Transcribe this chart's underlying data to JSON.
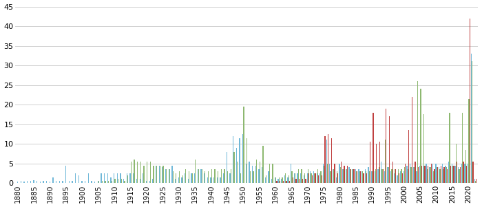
{
  "years": [
    1880,
    1881,
    1882,
    1883,
    1884,
    1885,
    1886,
    1887,
    1888,
    1889,
    1890,
    1891,
    1892,
    1893,
    1894,
    1895,
    1896,
    1897,
    1898,
    1899,
    1900,
    1901,
    1902,
    1903,
    1904,
    1905,
    1906,
    1907,
    1908,
    1909,
    1910,
    1911,
    1912,
    1913,
    1914,
    1915,
    1916,
    1917,
    1918,
    1919,
    1920,
    1921,
    1922,
    1923,
    1924,
    1925,
    1926,
    1927,
    1928,
    1929,
    1930,
    1931,
    1932,
    1933,
    1934,
    1935,
    1936,
    1937,
    1938,
    1939,
    1940,
    1941,
    1942,
    1943,
    1944,
    1945,
    1946,
    1947,
    1948,
    1949,
    1950,
    1951,
    1952,
    1953,
    1954,
    1955,
    1956,
    1957,
    1958,
    1959,
    1960,
    1961,
    1962,
    1963,
    1964,
    1965,
    1966,
    1967,
    1968,
    1969,
    1970,
    1971,
    1972,
    1973,
    1974,
    1975,
    1976,
    1977,
    1978,
    1979,
    1980,
    1981,
    1982,
    1983,
    1984,
    1985,
    1986,
    1987,
    1988,
    1989,
    1990,
    1991,
    1992,
    1993,
    1994,
    1995,
    1996,
    1997,
    1998,
    1999,
    2000,
    2001,
    2002,
    2003,
    2004,
    2005,
    2006,
    2007,
    2008,
    2009,
    2010,
    2011,
    2012,
    2013,
    2014,
    2015,
    2016,
    2017,
    2018,
    2019,
    2020,
    2021,
    2022
  ],
  "blue": [
    0.3,
    0.5,
    0.3,
    0.5,
    0.5,
    0.8,
    0.5,
    0.3,
    0.5,
    0.5,
    0.3,
    1.5,
    0.5,
    0.5,
    0.5,
    4.5,
    0.5,
    0.5,
    2.5,
    2.0,
    0.5,
    0.5,
    2.5,
    0.5,
    0.3,
    0.5,
    2.5,
    2.5,
    2.5,
    1.5,
    2.5,
    2.5,
    2.5,
    1.0,
    2.5,
    2.5,
    2.5,
    1.0,
    1.0,
    2.5,
    0.5,
    0.5,
    1.0,
    4.5,
    4.5,
    4.0,
    3.5,
    3.5,
    4.5,
    1.0,
    1.5,
    1.5,
    2.5,
    1.0,
    2.5,
    2.5,
    3.5,
    3.5,
    2.5,
    1.5,
    1.5,
    1.5,
    1.5,
    1.5,
    2.5,
    8.0,
    2.5,
    12.0,
    9.0,
    11.5,
    12.5,
    5.0,
    5.5,
    4.5,
    4.5,
    3.5,
    4.0,
    1.5,
    3.0,
    1.0,
    1.5,
    1.0,
    1.0,
    2.0,
    1.5,
    5.0,
    2.5,
    2.5,
    2.5,
    2.0,
    2.5,
    3.0,
    3.0,
    2.5,
    2.5,
    5.0,
    11.0,
    5.0,
    3.5,
    1.5,
    5.0,
    3.5,
    3.5,
    4.0,
    3.5,
    3.5,
    3.5,
    3.0,
    3.5,
    4.0,
    3.0,
    3.0,
    3.5,
    5.5,
    3.0,
    4.0,
    3.0,
    2.5,
    2.0,
    3.0,
    3.0,
    4.5,
    5.0,
    4.0,
    3.0,
    4.5,
    4.5,
    5.0,
    4.0,
    5.0,
    5.0,
    4.0,
    5.0,
    4.5,
    5.5,
    5.0,
    4.5,
    4.0,
    5.0,
    5.0,
    5.0,
    33.0,
    1.0
  ],
  "green": [
    0.0,
    0.0,
    0.0,
    0.0,
    0.0,
    0.0,
    0.0,
    0.0,
    0.0,
    0.0,
    0.0,
    0.0,
    0.0,
    0.0,
    0.0,
    0.0,
    0.0,
    0.0,
    0.0,
    0.0,
    0.0,
    0.0,
    0.0,
    0.0,
    0.0,
    0.5,
    0.5,
    0.5,
    0.5,
    0.5,
    1.0,
    1.0,
    1.0,
    0.5,
    2.0,
    5.5,
    6.0,
    5.5,
    5.5,
    4.5,
    5.5,
    5.5,
    4.5,
    4.5,
    4.5,
    4.5,
    3.5,
    3.5,
    3.0,
    2.5,
    3.0,
    2.0,
    3.5,
    3.0,
    2.5,
    6.0,
    3.5,
    3.5,
    3.0,
    3.0,
    3.5,
    3.5,
    3.0,
    3.5,
    3.5,
    3.0,
    3.5,
    8.0,
    5.5,
    2.5,
    19.5,
    11.5,
    3.0,
    3.0,
    6.0,
    5.5,
    9.5,
    2.0,
    5.0,
    5.0,
    1.5,
    1.5,
    1.5,
    2.5,
    2.0,
    3.0,
    2.5,
    3.5,
    3.5,
    2.5,
    3.5,
    2.5,
    2.5,
    3.5,
    3.0,
    4.5,
    5.0,
    3.0,
    3.5,
    3.0,
    4.0,
    3.5,
    3.5,
    3.5,
    3.5,
    3.0,
    3.0,
    3.0,
    3.0,
    3.0,
    3.0,
    3.5,
    4.0,
    3.5,
    11.0,
    4.0,
    3.5,
    3.5,
    3.5,
    3.5,
    4.0,
    3.5,
    4.0,
    4.0,
    26.0,
    24.0,
    17.5,
    3.5,
    4.0,
    3.0,
    4.0,
    3.5,
    3.5,
    4.0,
    18.0,
    4.5,
    10.0,
    3.5,
    18.0,
    8.5,
    21.5,
    31.0,
    0.5
  ],
  "red": [
    0.0,
    0.0,
    0.0,
    0.0,
    0.0,
    0.0,
    0.0,
    0.0,
    0.0,
    0.0,
    0.0,
    0.0,
    0.0,
    0.0,
    0.0,
    0.0,
    0.0,
    0.0,
    0.0,
    0.0,
    0.0,
    0.0,
    0.0,
    0.0,
    0.0,
    0.0,
    0.0,
    0.0,
    0.0,
    0.0,
    0.0,
    0.0,
    0.0,
    0.0,
    0.0,
    0.0,
    0.0,
    0.0,
    0.0,
    0.0,
    0.0,
    0.0,
    0.0,
    0.0,
    0.0,
    0.0,
    0.0,
    0.0,
    0.0,
    0.0,
    0.0,
    0.0,
    0.0,
    0.0,
    0.0,
    0.0,
    0.0,
    0.0,
    0.0,
    0.0,
    0.0,
    0.0,
    0.0,
    0.0,
    0.0,
    0.0,
    0.0,
    0.0,
    0.0,
    0.0,
    0.0,
    0.0,
    0.0,
    0.0,
    0.0,
    0.0,
    0.0,
    0.0,
    0.0,
    0.0,
    0.5,
    0.5,
    0.5,
    0.5,
    0.5,
    1.5,
    1.0,
    1.0,
    1.0,
    1.0,
    2.5,
    2.0,
    2.5,
    2.0,
    2.0,
    12.0,
    12.5,
    11.5,
    5.0,
    2.5,
    5.5,
    4.5,
    4.5,
    3.5,
    3.5,
    3.0,
    3.0,
    2.5,
    2.5,
    10.5,
    18.0,
    10.0,
    10.5,
    3.5,
    19.0,
    17.0,
    5.5,
    3.5,
    2.5,
    2.5,
    5.0,
    13.5,
    22.0,
    5.5,
    4.0,
    4.5,
    4.5,
    4.5,
    5.0,
    3.5,
    4.0,
    4.5,
    4.0,
    3.5,
    4.5,
    4.5,
    5.5,
    4.0,
    5.5,
    4.5,
    42.0,
    5.5,
    1.0
  ],
  "blue_color": "#70B8D8",
  "green_color": "#8DB870",
  "red_color": "#C04040",
  "ylim": [
    0,
    45
  ],
  "yticks": [
    0,
    5,
    10,
    15,
    20,
    25,
    30,
    35,
    40,
    45
  ],
  "xtick_years": [
    1880,
    1885,
    1890,
    1895,
    1900,
    1905,
    1910,
    1915,
    1920,
    1925,
    1930,
    1935,
    1940,
    1945,
    1950,
    1955,
    1960,
    1965,
    1970,
    1975,
    1980,
    1985,
    1990,
    1995,
    2000,
    2005,
    2010,
    2015,
    2020
  ],
  "background_color": "#FFFFFF",
  "grid_color": "#D0D0D0"
}
